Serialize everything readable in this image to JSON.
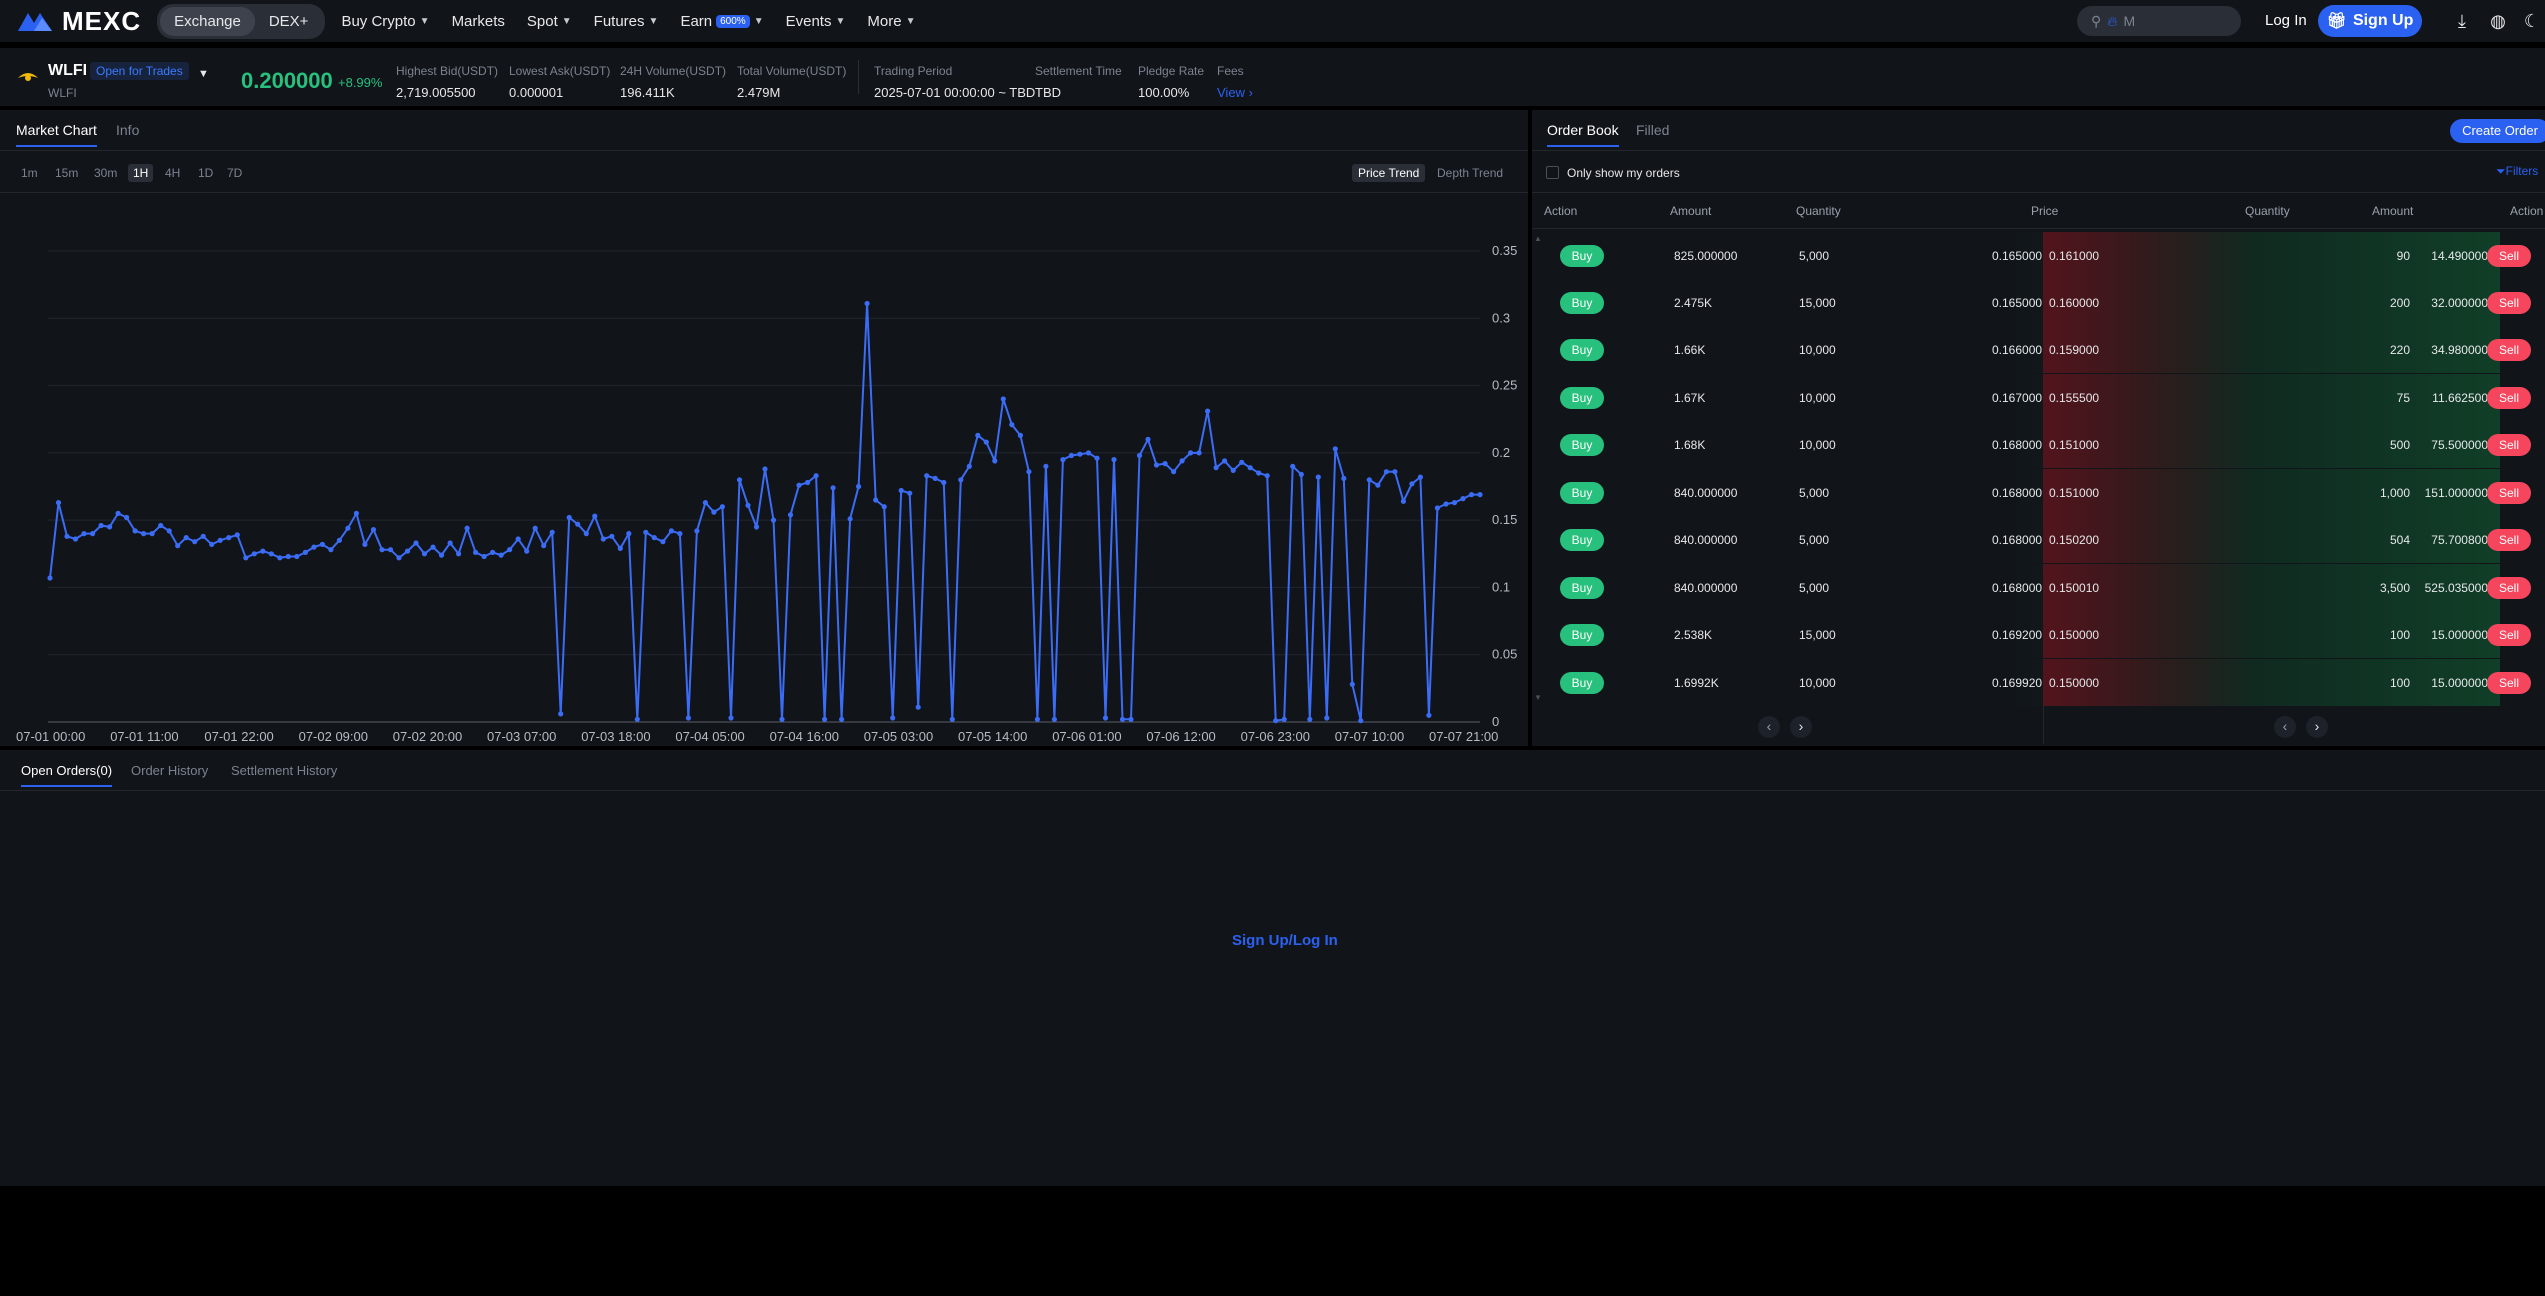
{
  "nav": {
    "logo": "MEXC",
    "modes": [
      "Exchange",
      "DEX+"
    ],
    "items": [
      {
        "label": "Buy Crypto",
        "caret": true
      },
      {
        "label": "Markets",
        "caret": false
      },
      {
        "label": "Spot",
        "caret": true
      },
      {
        "label": "Futures",
        "caret": true
      },
      {
        "label": "Earn",
        "caret": true,
        "badge": "600%"
      },
      {
        "label": "Events",
        "caret": true
      },
      {
        "label": "More",
        "caret": true
      }
    ],
    "search_placeholder": "M",
    "login": "Log In",
    "signup": "Sign Up",
    "accent": "#2b61f0"
  },
  "ticker": {
    "symbol": "WLFI",
    "sub": "WLFI",
    "status": "Open for Trades",
    "price": "0.200000",
    "change": "+8.99%",
    "stats": [
      {
        "label": "Highest Bid(USDT)",
        "value": "2,719.005500"
      },
      {
        "label": "Lowest Ask(USDT)",
        "value": "0.000001"
      },
      {
        "label": "24H Volume(USDT)",
        "value": "196.411K"
      },
      {
        "label": "Total Volume(USDT)",
        "value": "2.479M"
      },
      {
        "label": "Trading Period",
        "value": "2025-07-01 00:00:00 ~ TBD"
      },
      {
        "label": "Settlement Time",
        "value": "TBD"
      },
      {
        "label": "Pledge Rate",
        "value": "100.00%"
      },
      {
        "label": "Fees",
        "value": "View"
      }
    ]
  },
  "chart_panel": {
    "tabs": [
      "Market Chart",
      "Info"
    ],
    "intervals": [
      "1m",
      "15m",
      "30m",
      "1H",
      "4H",
      "1D",
      "7D"
    ],
    "active_interval": "1H",
    "views": [
      "Price Trend",
      "Depth Trend"
    ]
  },
  "chart_data": {
    "type": "line",
    "x_ticks": [
      "07-01 00:00",
      "07-01 11:00",
      "07-01 22:00",
      "07-02 09:00",
      "07-02 20:00",
      "07-03 07:00",
      "07-03 18:00",
      "07-04 05:00",
      "07-04 16:00",
      "07-05 03:00",
      "07-05 14:00",
      "07-06 01:00",
      "07-06 12:00",
      "07-06 23:00",
      "07-07 10:00",
      "07-07 21:00"
    ],
    "y_ticks": [
      "0.35",
      "0.3",
      "0.25",
      "0.2",
      "0.15",
      "0.1",
      "0.05",
      "0"
    ],
    "ylim": [
      0,
      0.35
    ],
    "grid": true,
    "color": "#3b6cf6",
    "values": [
      0.107,
      0.163,
      0.138,
      0.136,
      0.14,
      0.14,
      0.146,
      0.145,
      0.155,
      0.152,
      0.142,
      0.14,
      0.14,
      0.146,
      0.142,
      0.131,
      0.137,
      0.134,
      0.138,
      0.132,
      0.135,
      0.137,
      0.139,
      0.122,
      0.125,
      0.127,
      0.125,
      0.122,
      0.123,
      0.123,
      0.126,
      0.13,
      0.132,
      0.128,
      0.135,
      0.144,
      0.155,
      0.132,
      0.143,
      0.128,
      0.128,
      0.122,
      0.127,
      0.133,
      0.125,
      0.13,
      0.124,
      0.133,
      0.125,
      0.144,
      0.126,
      0.123,
      0.126,
      0.124,
      0.128,
      0.136,
      0.127,
      0.144,
      0.131,
      0.141,
      0.006,
      0.152,
      0.147,
      0.14,
      0.153,
      0.136,
      0.138,
      0.129,
      0.14,
      0.002,
      0.141,
      0.137,
      0.134,
      0.142,
      0.14,
      0.003,
      0.142,
      0.163,
      0.156,
      0.16,
      0.003,
      0.18,
      0.161,
      0.145,
      0.188,
      0.15,
      0.002,
      0.154,
      0.176,
      0.178,
      0.183,
      0.002,
      0.174,
      0.002,
      0.151,
      0.175,
      0.311,
      0.165,
      0.16,
      0.003,
      0.172,
      0.17,
      0.011,
      0.183,
      0.181,
      0.178,
      0.002,
      0.18,
      0.19,
      0.213,
      0.208,
      0.194,
      0.24,
      0.221,
      0.213,
      0.186,
      0.002,
      0.19,
      0.002,
      0.195,
      0.198,
      0.199,
      0.2,
      0.196,
      0.003,
      0.195,
      0.002,
      0.002,
      0.198,
      0.21,
      0.191,
      0.192,
      0.186,
      0.194,
      0.2,
      0.2,
      0.231,
      0.189,
      0.194,
      0.187,
      0.193,
      0.189,
      0.185,
      0.183,
      0.001,
      0.002,
      0.19,
      0.184,
      0.002,
      0.182,
      0.003,
      0.203,
      0.181,
      0.028,
      0.001,
      0.18,
      0.176,
      0.186,
      0.186,
      0.164,
      0.177,
      0.182,
      0.005,
      0.159,
      0.162,
      0.163,
      0.166,
      0.169,
      0.169
    ]
  },
  "order_book": {
    "tabs": [
      "Order Book",
      "Filled"
    ],
    "create_order": "Create Order",
    "only_mine": "Only show my orders",
    "filters": "Filters",
    "headers": [
      "Action",
      "Amount",
      "Quantity",
      "Price",
      "Quantity",
      "Amount",
      "Action"
    ],
    "buy_label": "Buy",
    "sell_label": "Sell",
    "rows": [
      {
        "buy_amount": "825.000000",
        "buy_qty": "5,000",
        "buy_price": "0.165000",
        "sell_price": "0.161000",
        "sell_qty": "90",
        "sell_amount": "14.490000"
      },
      {
        "buy_amount": "2.475K",
        "buy_qty": "15,000",
        "buy_price": "0.165000",
        "sell_price": "0.160000",
        "sell_qty": "200",
        "sell_amount": "32.000000"
      },
      {
        "buy_amount": "1.66K",
        "buy_qty": "10,000",
        "buy_price": "0.166000",
        "sell_price": "0.159000",
        "sell_qty": "220",
        "sell_amount": "34.980000"
      },
      {
        "buy_amount": "1.67K",
        "buy_qty": "10,000",
        "buy_price": "0.167000",
        "sell_price": "0.155500",
        "sell_qty": "75",
        "sell_amount": "11.662500"
      },
      {
        "buy_amount": "1.68K",
        "buy_qty": "10,000",
        "buy_price": "0.168000",
        "sell_price": "0.151000",
        "sell_qty": "500",
        "sell_amount": "75.500000"
      },
      {
        "buy_amount": "840.000000",
        "buy_qty": "5,000",
        "buy_price": "0.168000",
        "sell_price": "0.151000",
        "sell_qty": "1,000",
        "sell_amount": "151.000000"
      },
      {
        "buy_amount": "840.000000",
        "buy_qty": "5,000",
        "buy_price": "0.168000",
        "sell_price": "0.150200",
        "sell_qty": "504",
        "sell_amount": "75.700800"
      },
      {
        "buy_amount": "840.000000",
        "buy_qty": "5,000",
        "buy_price": "0.168000",
        "sell_price": "0.150010",
        "sell_qty": "3,500",
        "sell_amount": "525.035000"
      },
      {
        "buy_amount": "2.538K",
        "buy_qty": "15,000",
        "buy_price": "0.169200",
        "sell_price": "0.150000",
        "sell_qty": "100",
        "sell_amount": "15.000000"
      },
      {
        "buy_amount": "1.6992K",
        "buy_qty": "10,000",
        "buy_price": "0.169920",
        "sell_price": "0.150000",
        "sell_qty": "100",
        "sell_amount": "15.000000"
      }
    ]
  },
  "orders_panel": {
    "tabs": [
      "Open Orders(0)",
      "Order History",
      "Settlement History"
    ],
    "cta": "Sign Up/Log In"
  }
}
